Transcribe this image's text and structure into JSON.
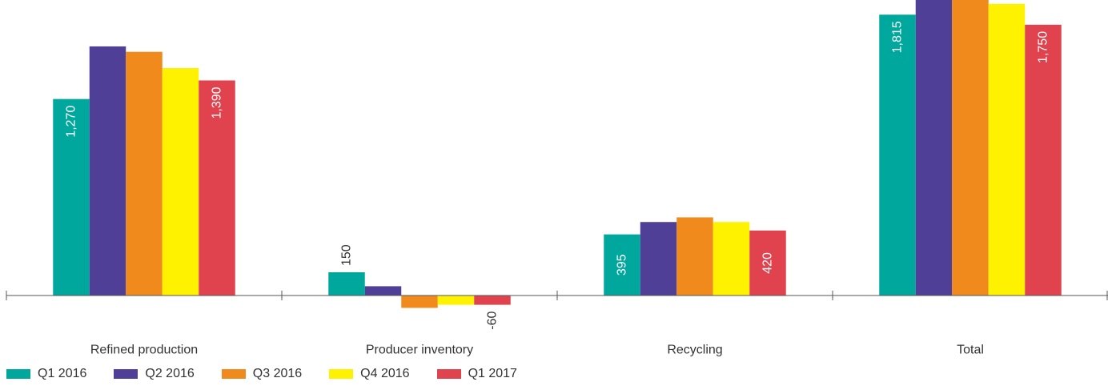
{
  "chart_data": {
    "type": "bar",
    "categories": [
      "Refined production",
      "Producer inventory",
      "Recycling",
      "Total"
    ],
    "series": [
      {
        "name": "Q1 2016",
        "color": "#00A79D",
        "values": [
          1270,
          150,
          395,
          1815
        ],
        "labels": [
          "1,270",
          "150",
          "395",
          "1,815"
        ]
      },
      {
        "name": "Q2 2016",
        "color": "#503F97",
        "values": [
          1610,
          60,
          475,
          2145
        ],
        "labels": [
          "",
          "",
          "",
          ""
        ]
      },
      {
        "name": "Q3 2016",
        "color": "#F08A1C",
        "values": [
          1575,
          -80,
          505,
          2000
        ],
        "labels": [
          "",
          "",
          "",
          ""
        ]
      },
      {
        "name": "Q4 2016",
        "color": "#FFF200",
        "values": [
          1470,
          -60,
          475,
          1885
        ],
        "labels": [
          "",
          "",
          "",
          ""
        ]
      },
      {
        "name": "Q1 2017",
        "color": "#E0434E",
        "values": [
          1390,
          -60,
          420,
          1750
        ],
        "labels": [
          "1,390",
          "-60",
          "420",
          "1,750"
        ]
      }
    ],
    "ylim": [
      -100,
      2150
    ],
    "title": "",
    "xlabel": "",
    "ylabel": "",
    "grid": false,
    "legend_position": "bottom-left"
  }
}
